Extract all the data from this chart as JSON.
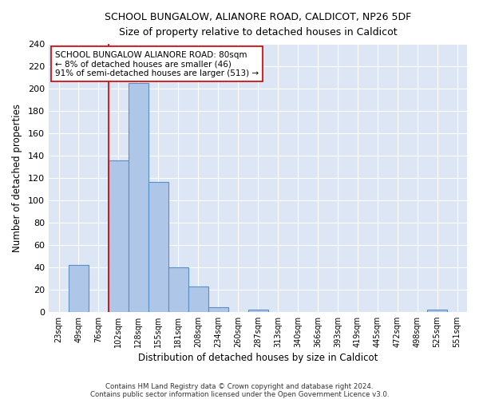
{
  "title": "SCHOOL BUNGALOW, ALIANORE ROAD, CALDICOT, NP26 5DF",
  "subtitle": "Size of property relative to detached houses in Caldicot",
  "xlabel": "Distribution of detached houses by size in Caldicot",
  "ylabel": "Number of detached properties",
  "footnote1": "Contains HM Land Registry data © Crown copyright and database right 2024.",
  "footnote2": "Contains public sector information licensed under the Open Government Licence v3.0.",
  "bin_labels": [
    "23sqm",
    "49sqm",
    "76sqm",
    "102sqm",
    "128sqm",
    "155sqm",
    "181sqm",
    "208sqm",
    "234sqm",
    "260sqm",
    "287sqm",
    "313sqm",
    "340sqm",
    "366sqm",
    "393sqm",
    "419sqm",
    "445sqm",
    "472sqm",
    "498sqm",
    "525sqm",
    "551sqm"
  ],
  "bar_values": [
    0,
    42,
    0,
    136,
    205,
    116,
    40,
    23,
    4,
    0,
    2,
    0,
    0,
    0,
    0,
    0,
    0,
    0,
    0,
    2,
    0
  ],
  "bar_color": "#aec6e8",
  "bar_edge_color": "#5b8ec4",
  "bg_color": "#dce6f5",
  "fig_bg_color": "#ffffff",
  "grid_color": "#ffffff",
  "vline_x": 2.5,
  "vline_color": "#cc0000",
  "annotation_text": "SCHOOL BUNGALOW ALIANORE ROAD: 80sqm\n← 8% of detached houses are smaller (46)\n91% of semi-detached houses are larger (513) →",
  "annotation_box_color": "#ffffff",
  "annotation_box_edge": "#cc0000",
  "ylim": [
    0,
    240
  ],
  "yticks": [
    0,
    20,
    40,
    60,
    80,
    100,
    120,
    140,
    160,
    180,
    200,
    220,
    240
  ]
}
